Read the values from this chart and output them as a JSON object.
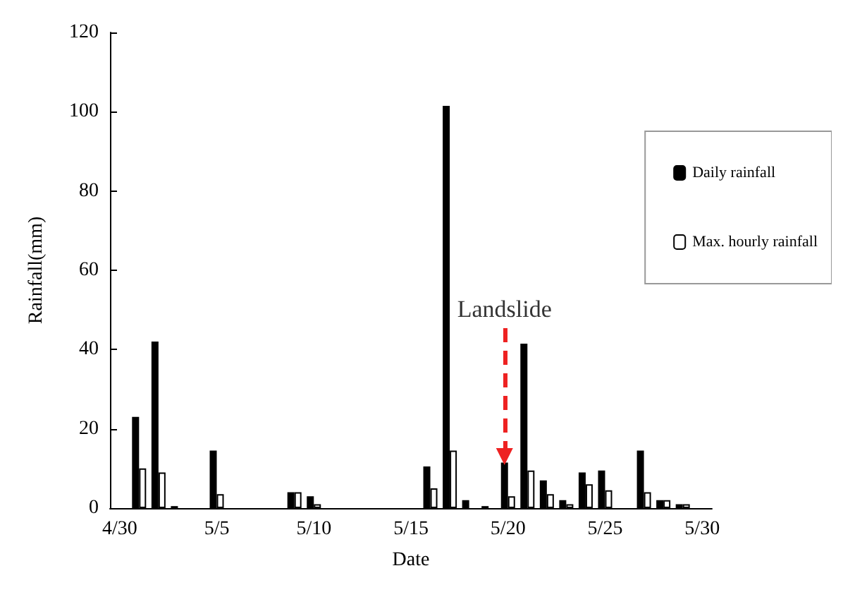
{
  "chart_data": {
    "type": "bar",
    "xlabel": "Date",
    "ylabel": "Rainfall(mm)",
    "categories": [
      "4/30",
      null,
      null,
      null,
      null,
      "5/5",
      null,
      null,
      null,
      null,
      "5/10",
      null,
      null,
      null,
      null,
      "5/15",
      null,
      null,
      null,
      null,
      "5/20",
      null,
      null,
      null,
      null,
      "5/25",
      null,
      null,
      null,
      null,
      "5/30"
    ],
    "series": [
      {
        "name": "Daily rainfall",
        "color": "#000000",
        "values": [
          null,
          23,
          42,
          0.5,
          null,
          14.5,
          null,
          null,
          null,
          4,
          3,
          null,
          null,
          null,
          null,
          null,
          10.5,
          101.5,
          2,
          0.5,
          11.5,
          41.5,
          7,
          2,
          9,
          9.5,
          null,
          14.5,
          2,
          1,
          null
        ]
      },
      {
        "name": "Max. hourly rainfall",
        "color": "#ffffff",
        "values": [
          null,
          10,
          9,
          null,
          null,
          3.5,
          null,
          null,
          null,
          4,
          1,
          null,
          null,
          null,
          null,
          null,
          5,
          14.5,
          null,
          null,
          3,
          9.5,
          3.5,
          1,
          6,
          4.5,
          null,
          4,
          2,
          1,
          null
        ]
      }
    ],
    "ylim": [
      0,
      120
    ],
    "yticks": [
      0,
      20,
      40,
      60,
      80,
      100,
      120
    ],
    "annotations": [
      {
        "text": "Landslide",
        "x": "5/20",
        "y": 13
      }
    ],
    "legend": "top right",
    "grid": false
  }
}
